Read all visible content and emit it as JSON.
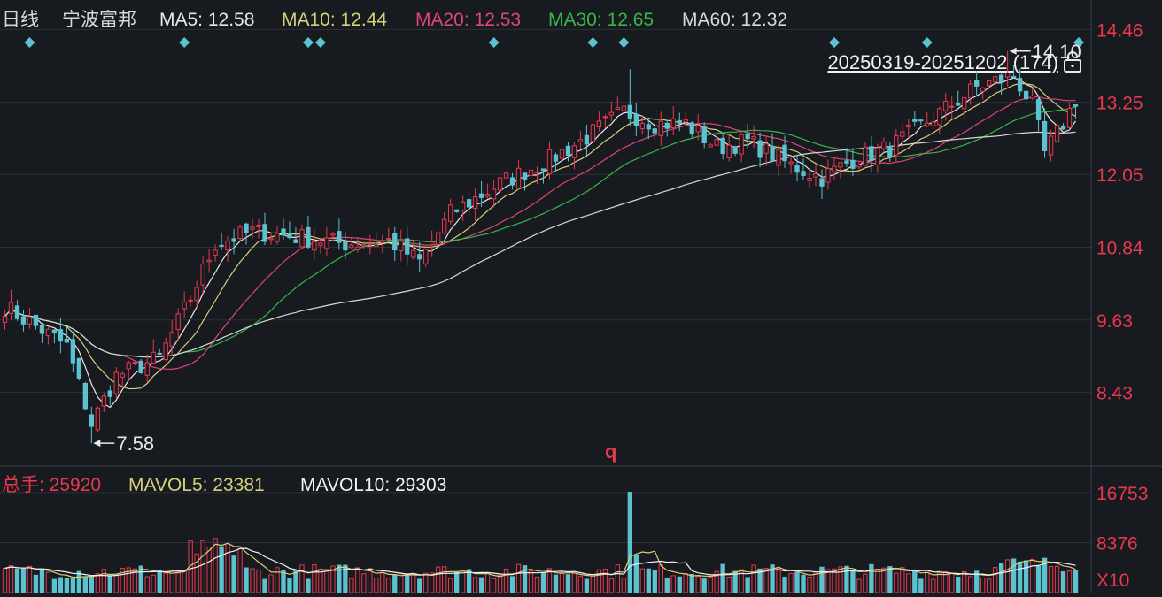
{
  "header": {
    "period": "日线",
    "stock_name": "宁波富邦",
    "ma": [
      {
        "label": "MA5: 12.58",
        "color": "#e8e8e8"
      },
      {
        "label": "MA10: 12.44",
        "color": "#d6d07a"
      },
      {
        "label": "MA20: 12.53",
        "color": "#e0457a"
      },
      {
        "label": "MA30: 12.65",
        "color": "#39b54a"
      },
      {
        "label": "MA60: 12.32",
        "color": "#d8d8d8"
      }
    ]
  },
  "range_label": "20250319-20251202 (174)",
  "marker_char": "q",
  "volume_header": {
    "total_label": "总手: 25920",
    "mavol5_label": "MAVOL5: 23381",
    "mavol10_label": "MAVOL10: 29303"
  },
  "colors": {
    "up": "#e8384f",
    "down": "#5bc2cf",
    "background": "#171a1f",
    "grid": "#2c3038",
    "axis_text": "#e8384f"
  },
  "chart_data": {
    "type": "candlestick",
    "trading_days": 174,
    "price_axis": {
      "ticks": [
        "14.46",
        "13.25",
        "12.05",
        "10.84",
        "9.63",
        "8.43"
      ],
      "ylim": [
        7.2,
        14.95
      ]
    },
    "volume_axis": {
      "ticks": [
        "16753",
        "8376"
      ],
      "unit_label": "X10",
      "ylim": [
        0,
        20000
      ]
    },
    "high_annotation": {
      "label": "14.10",
      "value": 14.1
    },
    "low_annotation": {
      "label": "7.58",
      "value": 7.58
    },
    "key_points": [
      {
        "day": 0,
        "close": 9.85
      },
      {
        "day": 10,
        "close": 9.2
      },
      {
        "day": 14,
        "close": 7.9
      },
      {
        "day": 18,
        "close": 8.7
      },
      {
        "day": 25,
        "close": 9.0
      },
      {
        "day": 30,
        "close": 10.0
      },
      {
        "day": 34,
        "close": 10.9
      },
      {
        "day": 40,
        "close": 11.1
      },
      {
        "day": 48,
        "close": 11.0
      },
      {
        "day": 55,
        "close": 10.9
      },
      {
        "day": 62,
        "close": 10.95
      },
      {
        "day": 67,
        "close": 10.6
      },
      {
        "day": 72,
        "close": 11.4
      },
      {
        "day": 80,
        "close": 11.9
      },
      {
        "day": 88,
        "close": 12.3
      },
      {
        "day": 93,
        "close": 12.6
      },
      {
        "day": 100,
        "close": 13.1
      },
      {
        "day": 105,
        "close": 12.9
      },
      {
        "day": 110,
        "close": 12.9
      },
      {
        "day": 115,
        "close": 12.5
      },
      {
        "day": 120,
        "close": 12.6
      },
      {
        "day": 127,
        "close": 12.2
      },
      {
        "day": 132,
        "close": 12.0
      },
      {
        "day": 137,
        "close": 12.3
      },
      {
        "day": 143,
        "close": 12.5
      },
      {
        "day": 150,
        "close": 13.0
      },
      {
        "day": 157,
        "close": 13.5
      },
      {
        "day": 163,
        "close": 13.7
      },
      {
        "day": 166,
        "close": 13.2
      },
      {
        "day": 168,
        "close": 12.4
      },
      {
        "day": 171,
        "close": 12.9
      },
      {
        "day": 173,
        "close": 13.3
      }
    ],
    "event_marker_days": [
      4,
      29,
      49,
      51,
      79,
      95,
      100,
      134,
      149,
      174
    ],
    "volume_spike_day": 101
  }
}
